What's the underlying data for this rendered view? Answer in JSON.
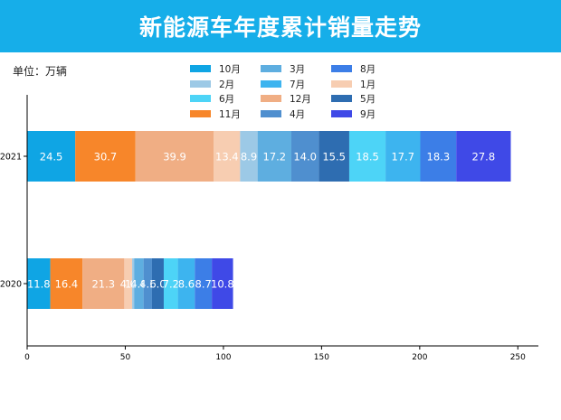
{
  "title": "新能源车年度累计销量走势",
  "unit_label": "单位：万辆",
  "chart_data": {
    "type": "stacked-bar-horizontal",
    "categories": [
      "2021",
      "2020"
    ],
    "series": [
      {
        "name": "10月",
        "color": "#0fa5e4",
        "values": [
          24.5,
          11.8
        ]
      },
      {
        "name": "11月",
        "color": "#f7862a",
        "values": [
          30.7,
          16.4
        ]
      },
      {
        "name": "12月",
        "color": "#f0ae84",
        "values": [
          39.9,
          21.3
        ]
      },
      {
        "name": "1月",
        "color": "#f7cdb1",
        "values": [
          13.4,
          4.0
        ]
      },
      {
        "name": "2月",
        "color": "#9cc9e6",
        "values": [
          8.9,
          1.0
        ]
      },
      {
        "name": "3月",
        "color": "#5eaee0",
        "values": [
          17.2,
          4.8
        ]
      },
      {
        "name": "4月",
        "color": "#4f8fcf",
        "values": [
          14.0,
          4.3
        ]
      },
      {
        "name": "5月",
        "color": "#2e6db1",
        "values": [
          15.5,
          6.0
        ]
      },
      {
        "name": "6月",
        "color": "#4dd4f7",
        "values": [
          18.5,
          7.2
        ]
      },
      {
        "name": "7月",
        "color": "#3db4ef",
        "values": [
          17.7,
          8.6
        ]
      },
      {
        "name": "8月",
        "color": "#3c7ee7",
        "values": [
          18.3,
          8.7
        ]
      },
      {
        "name": "9月",
        "color": "#3f49e7",
        "values": [
          27.8,
          10.8
        ]
      }
    ],
    "labels": [
      [
        "24.5",
        "30.7",
        "39.9",
        "13.4",
        "8.9",
        "17.2",
        "14.0",
        "15.5",
        "18.5",
        "17.7",
        "18.3",
        "27.8"
      ],
      [
        "11.8",
        "16.4",
        "21.3",
        "4.0",
        "1.0",
        "4.8",
        "4.3",
        "6.0",
        "7.2",
        "8.6",
        "8.7",
        "10.8"
      ]
    ],
    "xticks": [
      "0",
      "50",
      "100",
      "150",
      "200",
      "250"
    ],
    "xlim": [
      0,
      260
    ],
    "legend_position": "top",
    "legend_order": [
      "10月",
      "2月",
      "6月",
      "11月",
      "3月",
      "7月",
      "12月",
      "4月",
      "8月",
      "1月",
      "5月",
      "9月"
    ]
  }
}
